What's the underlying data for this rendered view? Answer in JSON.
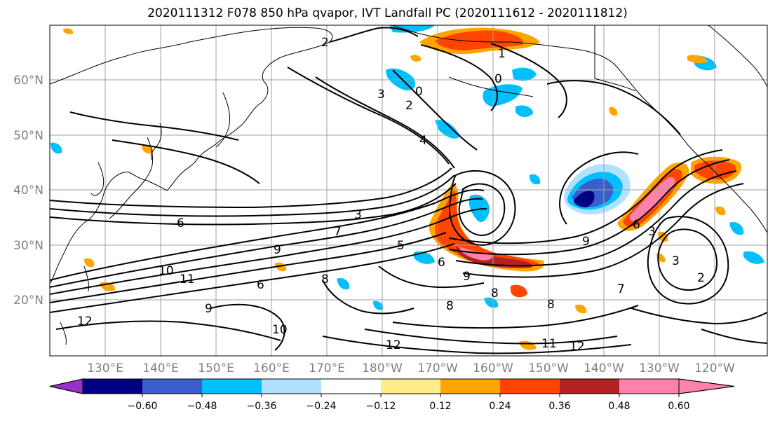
{
  "title": "2020111312 F078 850 hPa qvapor, IVT Landfall PC (2020111612 - 2020111812)",
  "map": {
    "lat_labels": [
      "60°N",
      "50°N",
      "40°N",
      "30°N",
      "20°N"
    ],
    "lon_labels": [
      "130°E",
      "140°E",
      "150°E",
      "160°E",
      "170°E",
      "180°W",
      "170°W",
      "160°W",
      "150°W",
      "140°W",
      "130°W",
      "120°W"
    ],
    "contour_labels": [
      "2",
      "1",
      "0",
      "3",
      "2",
      "0",
      "4",
      "3",
      "6",
      "9",
      "10",
      "11",
      "12",
      "9",
      "8",
      "6",
      "7",
      "9",
      "8",
      "6",
      "8",
      "12",
      "11",
      "12",
      "3",
      "6",
      "7",
      "9",
      "3",
      "2",
      "10",
      "8",
      "5"
    ]
  },
  "colorbar": {
    "ticks": [
      "−0.60",
      "−0.48",
      "−0.36",
      "−0.24",
      "−0.12",
      "0.12",
      "0.24",
      "0.36",
      "0.48",
      "0.60"
    ],
    "under_color": "#9932cc",
    "colors": [
      "#000080",
      "#3a5fcd",
      "#00bfff",
      "#b0e2ff",
      "#ffffff",
      "#ffec8b",
      "#ffa500",
      "#ff4500",
      "#b22222",
      "#ff82ab"
    ],
    "over_color": "#ff82ab"
  }
}
